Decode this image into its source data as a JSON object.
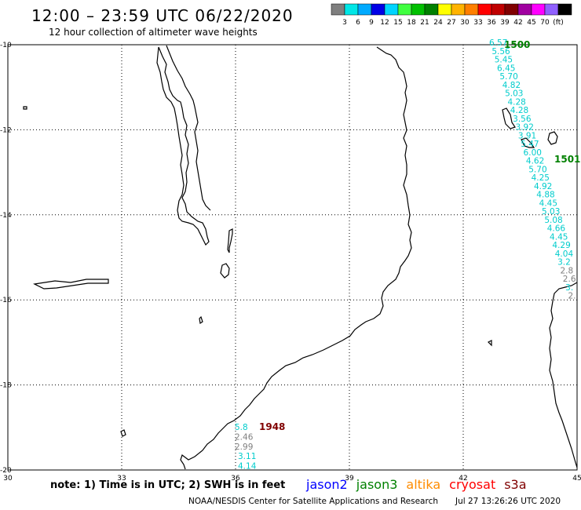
{
  "header": {
    "title": "12:00 – 23:59 UTC 06/22/2020",
    "subtitle": "12 hour collection of altimeter wave heights"
  },
  "colorbar": {
    "colors": [
      "#7f7f7f",
      "#00e6e6",
      "#00aaff",
      "#0000e6",
      "#00d4ff",
      "#40ff40",
      "#00c000",
      "#008000",
      "#ffff00",
      "#ffb300",
      "#ff7f00",
      "#ff0000",
      "#c00000",
      "#800000",
      "#a000a0",
      "#ff00ff",
      "#9060ff",
      "#000000"
    ],
    "labels": [
      "3",
      "6",
      "9",
      "12",
      "15",
      "18",
      "21",
      "24",
      "27",
      "30",
      "33",
      "36",
      "39",
      "42",
      "45",
      "70",
      "(ft)"
    ]
  },
  "axes": {
    "y_labels": [
      "-10",
      "-12",
      "-14",
      "-16",
      "-18",
      "-20"
    ],
    "x_labels": [
      "30",
      "33",
      "36",
      "39",
      "42",
      "45"
    ]
  },
  "annotations": {
    "pass_1500": "1500",
    "pass_1501": "1501",
    "pass_1948": "1948",
    "track_east": [
      "6.57",
      "5.56",
      "5.45",
      "6.45",
      "5.70",
      "4.82",
      "5.03",
      "4.28",
      "4.28",
      "3.56",
      "3.92",
      "3.91",
      "5.47",
      "6.00",
      "4.62",
      "5.70",
      "4.25",
      "4.92",
      "4.88",
      "4.45",
      "5.03",
      "5.08",
      "4.66",
      "4.45",
      "4.29",
      "4.04",
      "3.2",
      "2.8",
      "2.6",
      "3.",
      "2."
    ],
    "track_south": [
      "5.8",
      "2.46",
      "2.99",
      "3.11",
      "4.14"
    ]
  },
  "footer": {
    "note": "note: 1) Time is in UTC; 2) SWH is in feet",
    "legend": [
      {
        "name": "jason2",
        "color": "#0000ff"
      },
      {
        "name": "jason3",
        "color": "#008000"
      },
      {
        "name": "altika",
        "color": "#ff8c00"
      },
      {
        "name": "cryosat",
        "color": "#ff0000"
      },
      {
        "name": "s3a",
        "color": "#800000"
      }
    ],
    "credit": "NOAA/NESDIS Center for Satellite Applications and Research",
    "timestamp": "Jul 27 13:26:26 UTC 2020"
  }
}
